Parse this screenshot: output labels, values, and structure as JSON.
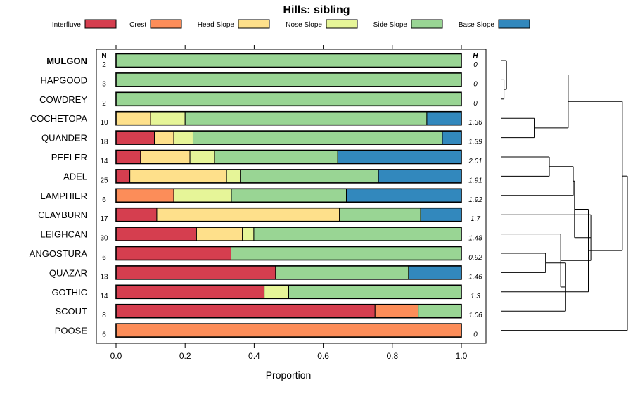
{
  "chart_data": {
    "type": "bar",
    "subtype": "stacked-horizontal-proportion",
    "title": "Hills: sibling",
    "xlabel": "Proportion",
    "ylabel": "",
    "xlim": [
      0,
      1
    ],
    "x_ticks": [
      "0.0",
      "0.2",
      "0.4",
      "0.6",
      "0.8",
      "1.0"
    ],
    "n_header": "N",
    "h_header": "H",
    "legend": [
      {
        "name": "Interfluve",
        "color": "#d53e4f"
      },
      {
        "name": "Crest",
        "color": "#fc8d59"
      },
      {
        "name": "Head Slope",
        "color": "#fee08b"
      },
      {
        "name": "Nose Slope",
        "color": "#e6f598"
      },
      {
        "name": "Side Slope",
        "color": "#99d594"
      },
      {
        "name": "Base Slope",
        "color": "#3288bd"
      }
    ],
    "categories": [
      "MULGON",
      "HAPGOOD",
      "COWDREY",
      "COCHETOPA",
      "QUANDER",
      "PEELER",
      "ADEL",
      "LAMPHIER",
      "CLAYBURN",
      "LEIGHCAN",
      "ANGOSTURA",
      "QUAZAR",
      "GOTHIC",
      "SCOUT",
      "POOSE"
    ],
    "highlight_category": "MULGON",
    "n_values": [
      "2",
      "3",
      "2",
      "10",
      "18",
      "14",
      "25",
      "6",
      "17",
      "30",
      "6",
      "13",
      "14",
      "8",
      "6"
    ],
    "h_values": [
      "0",
      "0",
      "0",
      "1.36",
      "1.39",
      "2.01",
      "1.91",
      "1.92",
      "1.7",
      "1.48",
      "0.92",
      "1.46",
      "1.3",
      "1.06",
      "0"
    ],
    "series": [
      {
        "name": "Interfluve",
        "values": [
          0,
          0,
          0,
          0,
          0.111,
          0.071,
          0.04,
          0,
          0.118,
          0.233,
          0.333,
          0.462,
          0.429,
          0.75,
          0
        ]
      },
      {
        "name": "Crest",
        "values": [
          0,
          0,
          0,
          0,
          0,
          0,
          0,
          0.167,
          0,
          0,
          0,
          0,
          0,
          0.125,
          1
        ]
      },
      {
        "name": "Head Slope",
        "values": [
          0,
          0,
          0,
          0.1,
          0.056,
          0.143,
          0.28,
          0,
          0.529,
          0.133,
          0,
          0,
          0,
          0,
          0
        ]
      },
      {
        "name": "Nose Slope",
        "values": [
          0,
          0,
          0,
          0.1,
          0.056,
          0.071,
          0.04,
          0.167,
          0,
          0.033,
          0,
          0,
          0.071,
          0,
          0
        ]
      },
      {
        "name": "Side Slope",
        "values": [
          1,
          1,
          1,
          0.7,
          0.722,
          0.357,
          0.4,
          0.333,
          0.235,
          0.6,
          0.667,
          0.385,
          0.5,
          0.125,
          0
        ]
      },
      {
        "name": "Base Slope",
        "values": [
          0,
          0,
          0,
          0.1,
          0.056,
          0.357,
          0.24,
          0.333,
          0.118,
          0,
          0,
          0.154,
          0,
          0,
          0
        ]
      }
    ],
    "dendrogram": {
      "type": "hierarchical-clustering",
      "merges": [
        [
          -2,
          -3,
          0.02
        ],
        [
          -1,
          1,
          0.04
        ],
        [
          -4,
          -5,
          0.26
        ],
        [
          2,
          3,
          0.53
        ],
        [
          -6,
          -7,
          0.38
        ],
        [
          -8,
          5,
          0.57
        ],
        [
          -11,
          -12,
          0.35
        ],
        [
          -14,
          7,
          0.51
        ],
        [
          -10,
          8,
          0.47
        ],
        [
          -9,
          9,
          0.71
        ],
        [
          6,
          10,
          0.58
        ],
        [
          -13,
          11,
          0.69
        ],
        [
          4,
          12,
          0.96
        ],
        [
          -15,
          13,
          1.0
        ]
      ]
    }
  }
}
